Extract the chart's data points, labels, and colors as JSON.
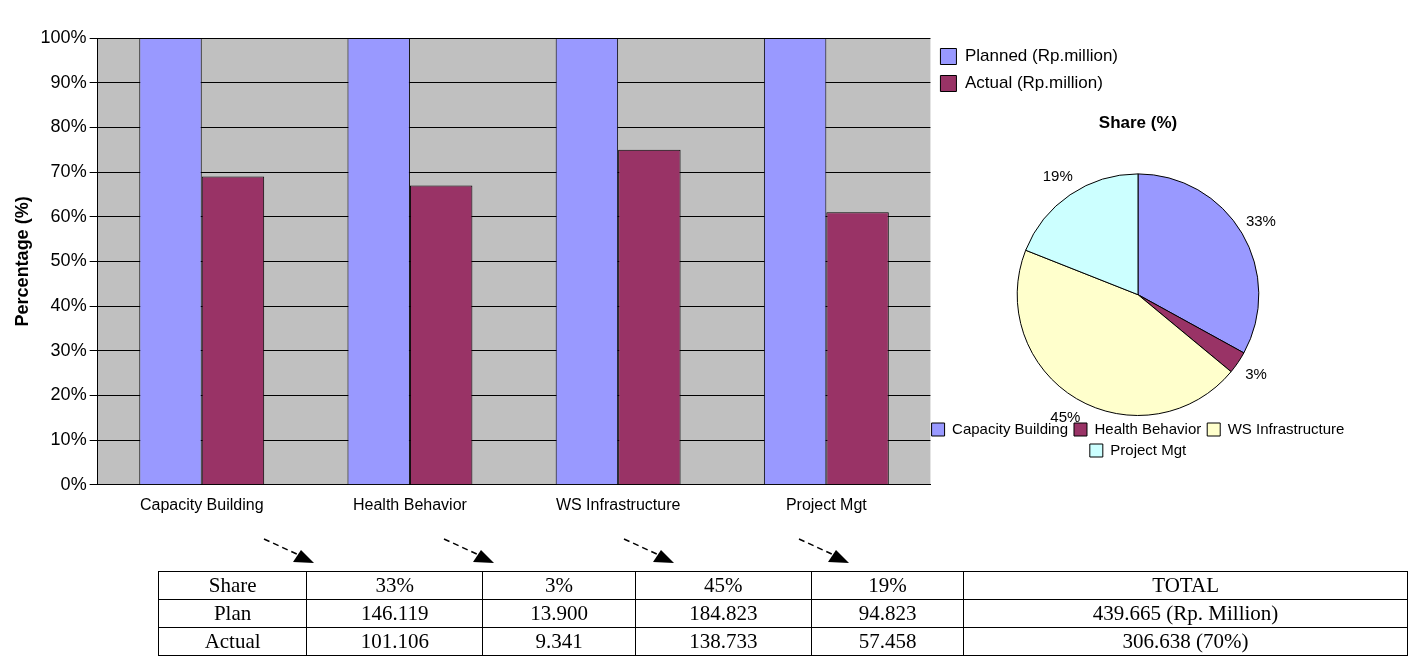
{
  "chart_data": [
    {
      "type": "bar",
      "ylabel": "Percentage (%)",
      "categories": [
        "Capacity Building",
        "Health Behavior",
        "WS Infrastructure",
        "Project Mgt"
      ],
      "series": [
        {
          "name": "Planned (Rp.million)",
          "color": "#9999ff",
          "values": [
            100,
            100,
            100,
            100
          ]
        },
        {
          "name": "Actual (Rp.million)",
          "color": "#993366",
          "values": [
            69,
            67,
            75,
            61
          ]
        }
      ],
      "ylim": [
        0,
        100
      ],
      "yticks": [
        {
          "value": 0,
          "label": "0%"
        },
        {
          "value": 10,
          "label": "10%"
        },
        {
          "value": 20,
          "label": "20%"
        },
        {
          "value": 30,
          "label": "30%"
        },
        {
          "value": 40,
          "label": "40%"
        },
        {
          "value": 50,
          "label": "50%"
        },
        {
          "value": 60,
          "label": "60%"
        },
        {
          "value": 70,
          "label": "70%"
        },
        {
          "value": 80,
          "label": "80%"
        },
        {
          "value": 90,
          "label": "90%"
        },
        {
          "value": 100,
          "label": "100%"
        }
      ],
      "grid": "y",
      "legend": "right"
    },
    {
      "type": "pie",
      "title": "Share (%)",
      "categories": [
        "Capacity Building",
        "Health Behavior",
        "WS Infrastructure",
        "Project Mgt"
      ],
      "values": [
        33,
        3,
        45,
        19
      ],
      "colors": [
        "#9999ff",
        "#993366",
        "#ffffcc",
        "#ccffff"
      ],
      "value_labels": [
        "33%",
        "3%",
        "45%",
        "19%"
      ],
      "legend": "bottom"
    },
    {
      "type": "other",
      "y_categories": [
        "Share",
        "Plan",
        "Actual"
      ],
      "cell_labels": [
        [
          "33%",
          "3%",
          "45%",
          "19%",
          "TOTAL"
        ],
        [
          "146.119",
          "13.900",
          "184.823",
          "94.823",
          "439.665 (Rp. Million)"
        ],
        [
          "101.106",
          "9.341",
          "138.733",
          "57.458",
          "306.638 (70%)"
        ]
      ]
    }
  ]
}
